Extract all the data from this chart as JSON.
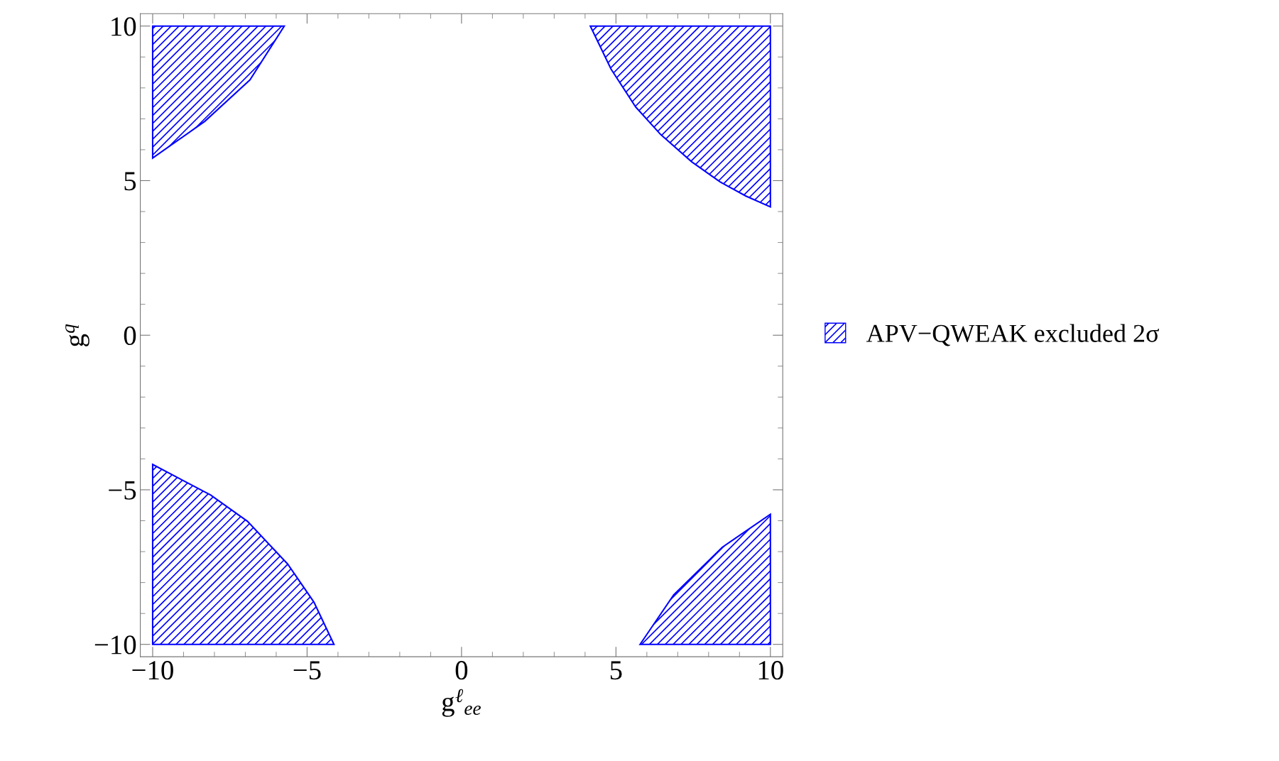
{
  "chart_data": {
    "type": "area",
    "xlabel": "g$^{ℓ}$$_{ee}$",
    "ylabel": "g$^{q}$",
    "xlim": [
      -10.4,
      10.4
    ],
    "ylim": [
      -10.4,
      10.4
    ],
    "xticks": [
      -10,
      -5,
      0,
      5,
      10
    ],
    "yticks": [
      -10,
      -5,
      0,
      5,
      10
    ],
    "grid": false,
    "legend": "right",
    "series": [
      {
        "name": "APV−QWEAK excluded 2σ",
        "color": "#0000ff",
        "x": [
          4.17,
          4.84,
          5.64,
          6.45,
          7.45,
          8.37,
          9.21,
          10.0,
          10
        ],
        "values": [
          10,
          8.61,
          7.38,
          6.49,
          5.61,
          4.96,
          4.5,
          4.15,
          10
        ]
      },
      {
        "color": "#0000ff",
        "x": [
          -10,
          -8.31,
          -6.85,
          -5.74,
          -10
        ],
        "values": [
          5.73,
          6.92,
          8.26,
          10,
          10
        ]
      },
      {
        "color": "#0000ff",
        "x": [
          -10,
          -8.12,
          -6.93,
          -5.63,
          -4.78,
          -4.13,
          -10
        ],
        "values": [
          -4.18,
          -5.17,
          -6.02,
          -7.4,
          -8.63,
          -10,
          -10
        ]
      },
      {
        "color": "#0000ff",
        "x": [
          5.78,
          6.87,
          8.44,
          10,
          10
        ],
        "values": [
          -10,
          -8.4,
          -6.86,
          -5.79,
          -10
        ]
      }
    ]
  }
}
